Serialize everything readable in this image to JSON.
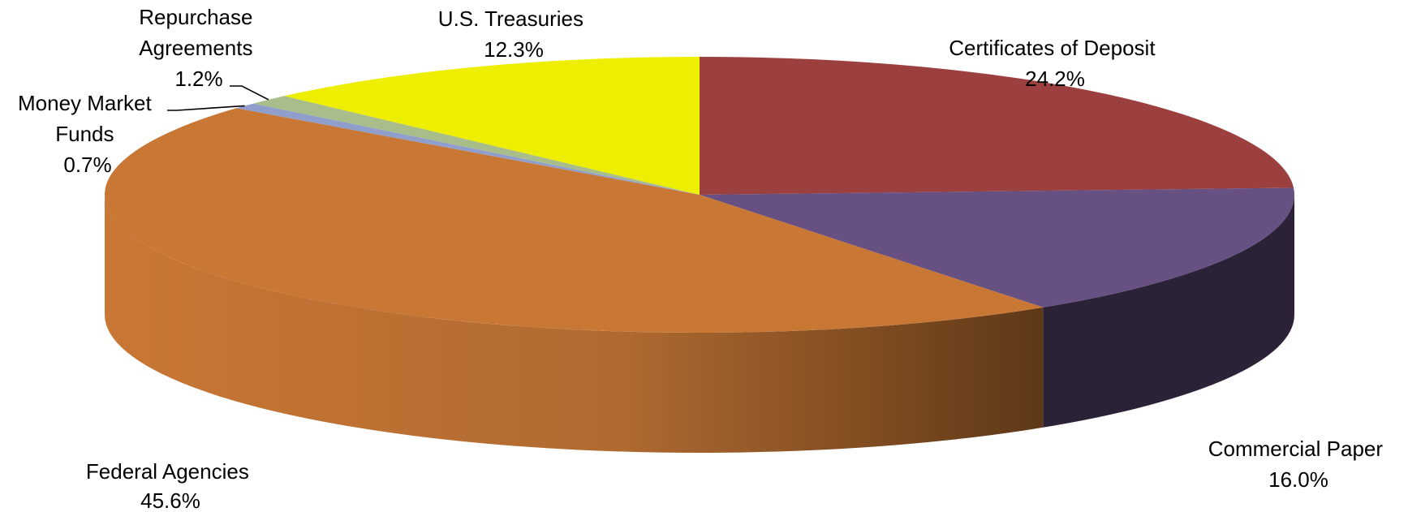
{
  "chart_data": {
    "type": "pie",
    "style": "3d",
    "title": "",
    "legend": "none",
    "slices": [
      {
        "label": "Certificates of Deposit",
        "value": 24.2,
        "display": "24.2%",
        "color": "#9B3F3F",
        "side_color": "#5a2222"
      },
      {
        "label": "Commercial Paper",
        "value": 16.0,
        "display": "16.0%",
        "color": "#675082",
        "side_color": "#2c2237"
      },
      {
        "label": "Federal Agencies",
        "value": 45.6,
        "display": "45.6%",
        "color": "#C97735",
        "side_color": "#5e3818"
      },
      {
        "label": "Money Market Funds",
        "value": 0.7,
        "display": "0.7%",
        "color": "#8F9ECB",
        "side_color": "#596694"
      },
      {
        "label": "Repurchase Agreements",
        "value": 1.2,
        "display": "1.2%",
        "color": "#A9BD8A",
        "side_color": "#6d7d55"
      },
      {
        "label": "U.S. Treasuries",
        "value": 12.3,
        "display": "12.3%",
        "color": "#EEEE00",
        "side_color": "#9a9a00"
      }
    ]
  }
}
